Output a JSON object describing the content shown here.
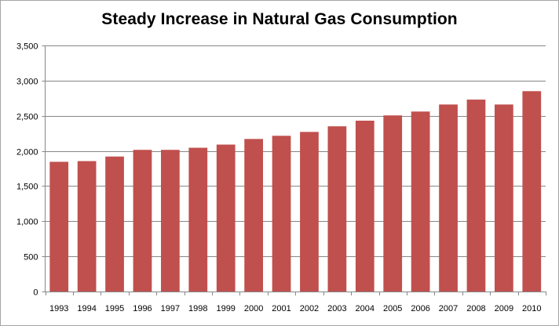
{
  "chart_data": {
    "type": "bar",
    "title": "Steady Increase in Natural Gas Consumption",
    "categories": [
      "1993",
      "1994",
      "1995",
      "1996",
      "1997",
      "1998",
      "1999",
      "2000",
      "2001",
      "2002",
      "2003",
      "2004",
      "2005",
      "2006",
      "2007",
      "2008",
      "2009",
      "2010"
    ],
    "values": [
      1845,
      1855,
      1920,
      2015,
      2015,
      2045,
      2090,
      2170,
      2215,
      2270,
      2350,
      2430,
      2505,
      2560,
      2660,
      2730,
      2660,
      2850
    ],
    "ylim": [
      0,
      3500
    ],
    "yticks": [
      "0",
      "500",
      "1,000",
      "1,500",
      "2,000",
      "2,500",
      "3,000",
      "3,500"
    ],
    "ytick_values": [
      0,
      500,
      1000,
      1500,
      2000,
      2500,
      3000,
      3500
    ],
    "grid": true,
    "legend": "none",
    "colors": {
      "bar": "#c0504d",
      "grid": "#878787",
      "axis": "#878787"
    }
  }
}
